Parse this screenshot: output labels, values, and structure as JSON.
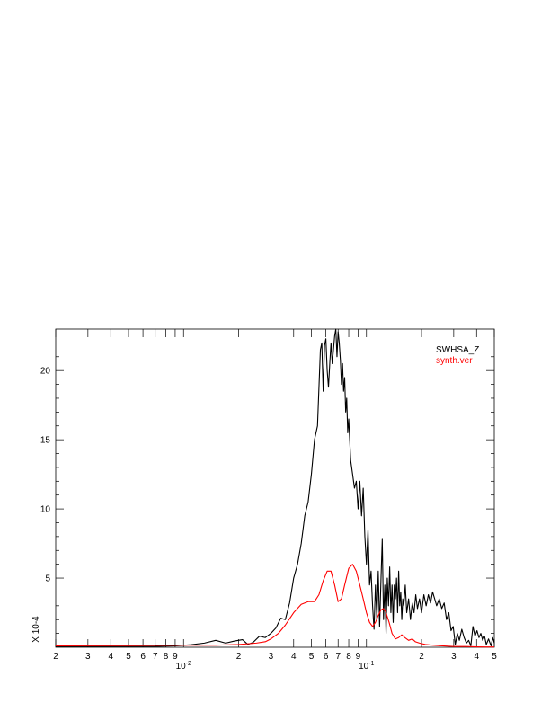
{
  "chart_data": {
    "type": "line",
    "xscale": "log",
    "xlim": [
      0.002,
      0.5
    ],
    "ylim": [
      0,
      23
    ],
    "ylabel_multiplier": "X 10-4",
    "x_tick_labels": [
      {
        "value": 0.002,
        "label": "2"
      },
      {
        "value": 0.003,
        "label": "3"
      },
      {
        "value": 0.004,
        "label": "4"
      },
      {
        "value": 0.005,
        "label": "5"
      },
      {
        "value": 0.006,
        "label": "6"
      },
      {
        "value": 0.007,
        "label": "7"
      },
      {
        "value": 0.008,
        "label": "8"
      },
      {
        "value": 0.009,
        "label": "9"
      },
      {
        "value": 0.02,
        "label": "2"
      },
      {
        "value": 0.03,
        "label": "3"
      },
      {
        "value": 0.04,
        "label": "4"
      },
      {
        "value": 0.05,
        "label": "5"
      },
      {
        "value": 0.06,
        "label": "6"
      },
      {
        "value": 0.07,
        "label": "7"
      },
      {
        "value": 0.08,
        "label": "8"
      },
      {
        "value": 0.09,
        "label": "9"
      },
      {
        "value": 0.2,
        "label": "2"
      },
      {
        "value": 0.3,
        "label": "3"
      },
      {
        "value": 0.4,
        "label": "4"
      },
      {
        "value": 0.5,
        "label": "5"
      }
    ],
    "x_decade_labels": [
      {
        "value": 0.01,
        "base": "10",
        "exp": "-2"
      },
      {
        "value": 0.1,
        "base": "10",
        "exp": "-1"
      }
    ],
    "y_tick_labels": [
      {
        "value": 5,
        "label": "5"
      },
      {
        "value": 10,
        "label": "10"
      },
      {
        "value": 15,
        "label": "15"
      },
      {
        "value": 20,
        "label": "20"
      }
    ],
    "y_minor_step": 1,
    "legend_position": "top-right",
    "series": [
      {
        "name": "SWHSA_Z",
        "color": "#000000",
        "points": [
          [
            0.002,
            0.05
          ],
          [
            0.004,
            0.05
          ],
          [
            0.007,
            0.06
          ],
          [
            0.009,
            0.1
          ],
          [
            0.011,
            0.18
          ],
          [
            0.013,
            0.3
          ],
          [
            0.015,
            0.5
          ],
          [
            0.017,
            0.3
          ],
          [
            0.019,
            0.45
          ],
          [
            0.021,
            0.55
          ],
          [
            0.0225,
            0.2
          ],
          [
            0.024,
            0.35
          ],
          [
            0.026,
            0.8
          ],
          [
            0.028,
            0.7
          ],
          [
            0.03,
            1.0
          ],
          [
            0.032,
            1.4
          ],
          [
            0.034,
            2.1
          ],
          [
            0.036,
            2.0
          ],
          [
            0.038,
            3.2
          ],
          [
            0.04,
            5.0
          ],
          [
            0.042,
            6.0
          ],
          [
            0.044,
            7.5
          ],
          [
            0.046,
            9.5
          ],
          [
            0.048,
            10.5
          ],
          [
            0.05,
            12.5
          ],
          [
            0.052,
            15.0
          ],
          [
            0.054,
            16.0
          ],
          [
            0.056,
            21.5
          ],
          [
            0.057,
            22.0
          ],
          [
            0.058,
            18.5
          ],
          [
            0.059,
            21.8
          ],
          [
            0.06,
            22.3
          ],
          [
            0.061,
            20.0
          ],
          [
            0.062,
            18.8
          ],
          [
            0.063,
            20.5
          ],
          [
            0.064,
            22.0
          ],
          [
            0.065,
            20.5
          ],
          [
            0.066,
            21.5
          ],
          [
            0.067,
            22.5
          ],
          [
            0.068,
            23.0
          ],
          [
            0.069,
            21.0
          ],
          [
            0.07,
            22.8
          ],
          [
            0.071,
            22.0
          ],
          [
            0.072,
            20.8
          ],
          [
            0.073,
            19.0
          ],
          [
            0.074,
            20.5
          ],
          [
            0.075,
            18.5
          ],
          [
            0.076,
            19.5
          ],
          [
            0.077,
            17.0
          ],
          [
            0.078,
            18.0
          ],
          [
            0.079,
            15.5
          ],
          [
            0.08,
            16.5
          ],
          [
            0.082,
            13.5
          ],
          [
            0.084,
            12.5
          ],
          [
            0.086,
            11.5
          ],
          [
            0.088,
            12.0
          ],
          [
            0.09,
            10.0
          ],
          [
            0.092,
            12.0
          ],
          [
            0.094,
            9.5
          ],
          [
            0.096,
            11.5
          ],
          [
            0.098,
            8.0
          ],
          [
            0.1,
            6.0
          ],
          [
            0.102,
            8.5
          ],
          [
            0.104,
            4.5
          ],
          [
            0.106,
            5.5
          ],
          [
            0.108,
            3.0
          ],
          [
            0.11,
            1.3
          ],
          [
            0.112,
            4.5
          ],
          [
            0.114,
            2.0
          ],
          [
            0.116,
            5.5
          ],
          [
            0.118,
            1.5
          ],
          [
            0.12,
            4.8
          ],
          [
            0.122,
            7.8
          ],
          [
            0.124,
            2.0
          ],
          [
            0.126,
            4.5
          ],
          [
            0.128,
            1.0
          ],
          [
            0.13,
            5.0
          ],
          [
            0.132,
            3.0
          ],
          [
            0.134,
            5.8
          ],
          [
            0.136,
            2.5
          ],
          [
            0.138,
            4.5
          ],
          [
            0.14,
            1.8
          ],
          [
            0.142,
            4.5
          ],
          [
            0.144,
            3.5
          ],
          [
            0.146,
            5.0
          ],
          [
            0.148,
            2.5
          ],
          [
            0.15,
            5.5
          ],
          [
            0.152,
            3.0
          ],
          [
            0.154,
            4.0
          ],
          [
            0.156,
            2.0
          ],
          [
            0.158,
            3.5
          ],
          [
            0.16,
            3.0
          ],
          [
            0.163,
            4.5
          ],
          [
            0.166,
            2.5
          ],
          [
            0.17,
            3.5
          ],
          [
            0.174,
            2.0
          ],
          [
            0.178,
            3.2
          ],
          [
            0.182,
            2.5
          ],
          [
            0.186,
            3.8
          ],
          [
            0.19,
            2.8
          ],
          [
            0.195,
            3.5
          ],
          [
            0.2,
            2.5
          ],
          [
            0.206,
            3.8
          ],
          [
            0.212,
            3.0
          ],
          [
            0.218,
            3.8
          ],
          [
            0.224,
            3.2
          ],
          [
            0.23,
            4.0
          ],
          [
            0.236,
            3.5
          ],
          [
            0.242,
            3.0
          ],
          [
            0.25,
            3.5
          ],
          [
            0.258,
            2.8
          ],
          [
            0.266,
            3.2
          ],
          [
            0.274,
            2.0
          ],
          [
            0.282,
            2.5
          ],
          [
            0.29,
            1.2
          ],
          [
            0.298,
            1.5
          ],
          [
            0.306,
            0.2
          ],
          [
            0.314,
            1.0
          ],
          [
            0.322,
            0.5
          ],
          [
            0.332,
            1.3
          ],
          [
            0.342,
            0.7
          ],
          [
            0.352,
            0.3
          ],
          [
            0.362,
            0.5
          ],
          [
            0.372,
            0.1
          ],
          [
            0.382,
            1.5
          ],
          [
            0.392,
            0.8
          ],
          [
            0.402,
            1.2
          ],
          [
            0.412,
            0.7
          ],
          [
            0.422,
            1.0
          ],
          [
            0.432,
            0.5
          ],
          [
            0.442,
            0.8
          ],
          [
            0.452,
            0.2
          ],
          [
            0.465,
            0.6
          ],
          [
            0.48,
            0.1
          ],
          [
            0.49,
            0.7
          ],
          [
            0.5,
            0.3
          ]
        ]
      },
      {
        "name": "synth.ver",
        "color": "#ff0000",
        "points": [
          [
            0.002,
            0.1
          ],
          [
            0.005,
            0.12
          ],
          [
            0.01,
            0.15
          ],
          [
            0.015,
            0.15
          ],
          [
            0.02,
            0.2
          ],
          [
            0.025,
            0.3
          ],
          [
            0.028,
            0.4
          ],
          [
            0.03,
            0.6
          ],
          [
            0.033,
            1.0
          ],
          [
            0.036,
            1.6
          ],
          [
            0.04,
            2.5
          ],
          [
            0.044,
            3.1
          ],
          [
            0.048,
            3.3
          ],
          [
            0.052,
            3.3
          ],
          [
            0.055,
            3.8
          ],
          [
            0.058,
            4.8
          ],
          [
            0.061,
            5.5
          ],
          [
            0.064,
            5.5
          ],
          [
            0.067,
            4.5
          ],
          [
            0.07,
            3.3
          ],
          [
            0.073,
            3.5
          ],
          [
            0.076,
            4.5
          ],
          [
            0.08,
            5.7
          ],
          [
            0.084,
            6.0
          ],
          [
            0.088,
            5.5
          ],
          [
            0.092,
            4.5
          ],
          [
            0.096,
            3.5
          ],
          [
            0.1,
            2.5
          ],
          [
            0.104,
            1.8
          ],
          [
            0.108,
            1.5
          ],
          [
            0.112,
            1.8
          ],
          [
            0.116,
            2.3
          ],
          [
            0.12,
            2.7
          ],
          [
            0.124,
            2.8
          ],
          [
            0.128,
            2.5
          ],
          [
            0.133,
            1.8
          ],
          [
            0.138,
            1.0
          ],
          [
            0.144,
            0.6
          ],
          [
            0.15,
            0.7
          ],
          [
            0.156,
            0.9
          ],
          [
            0.162,
            0.7
          ],
          [
            0.17,
            0.5
          ],
          [
            0.178,
            0.6
          ],
          [
            0.185,
            0.4
          ],
          [
            0.195,
            0.3
          ],
          [
            0.21,
            0.2
          ],
          [
            0.23,
            0.15
          ],
          [
            0.26,
            0.1
          ],
          [
            0.3,
            0.05
          ],
          [
            0.35,
            0.05
          ],
          [
            0.4,
            0.03
          ],
          [
            0.45,
            0.02
          ],
          [
            0.5,
            0.02
          ]
        ]
      }
    ]
  }
}
